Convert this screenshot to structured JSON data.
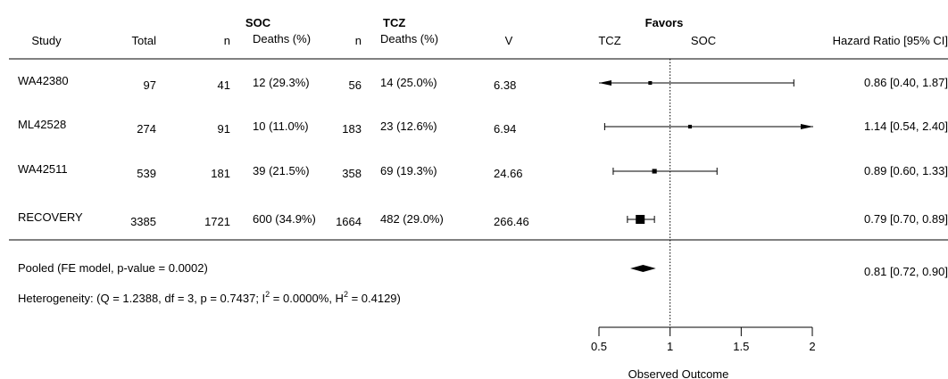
{
  "chart_data": {
    "type": "forest",
    "columns": {
      "study": "Study",
      "total": "Total",
      "soc_group": "SOC",
      "tcz_group": "TCZ",
      "n": "n",
      "deaths": "Deaths (%)",
      "v": "V",
      "favors": "Favors",
      "favors_left": "TCZ",
      "favors_right": "SOC",
      "hr": "Hazard Ratio [95% CI]"
    },
    "studies": [
      {
        "study": "WA42380",
        "total": "97",
        "soc_n": "41",
        "soc_deaths": "12 (29.3%)",
        "tcz_n": "56",
        "tcz_deaths": "14 (25.0%)",
        "v": "6.38",
        "hr": 0.86,
        "lo": 0.4,
        "hi": 1.87,
        "hr_text": "0.86 [0.40, 1.87]",
        "weight": 6.38
      },
      {
        "study": "ML42528",
        "total": "274",
        "soc_n": "91",
        "soc_deaths": "10 (11.0%)",
        "tcz_n": "183",
        "tcz_deaths": "23 (12.6%)",
        "v": "6.94",
        "hr": 1.14,
        "lo": 0.54,
        "hi": 2.4,
        "hr_text": "1.14 [0.54, 2.40]",
        "weight": 6.94
      },
      {
        "study": "WA42511",
        "total": "539",
        "soc_n": "181",
        "soc_deaths": "39 (21.5%)",
        "tcz_n": "358",
        "tcz_deaths": "69 (19.3%)",
        "v": "24.66",
        "hr": 0.89,
        "lo": 0.6,
        "hi": 1.33,
        "hr_text": "0.89 [0.60, 1.33]",
        "weight": 24.66
      },
      {
        "study": "RECOVERY",
        "total": "3385",
        "soc_n": "1721",
        "soc_deaths": "600 (34.9%)",
        "tcz_n": "1664",
        "tcz_deaths": "482 (29.0%)",
        "v": "266.46",
        "hr": 0.79,
        "lo": 0.7,
        "hi": 0.89,
        "hr_text": "0.79 [0.70, 0.89]",
        "weight": 266.46
      }
    ],
    "pooled": {
      "label": "Pooled (FE model, p-value = 0.0002)",
      "hr": 0.81,
      "lo": 0.72,
      "hi": 0.9,
      "hr_text": "0.81 [0.72, 0.90]"
    },
    "heterogeneity": {
      "prefix": "Heterogeneity: (Q = 1.2388, df = 3, p = 0.7437; I",
      "sup1": "2",
      "middle": " = 0.0000%, H",
      "sup2": "2",
      "suffix": " = 0.4129)"
    },
    "xaxis": {
      "label": "Observed Outcome",
      "ticks": [
        0.5,
        1,
        1.5,
        2
      ],
      "tick_labels": [
        "0.5",
        "1",
        "1.5",
        "2"
      ],
      "range": [
        0.5,
        2
      ],
      "reference_line": 1
    }
  }
}
